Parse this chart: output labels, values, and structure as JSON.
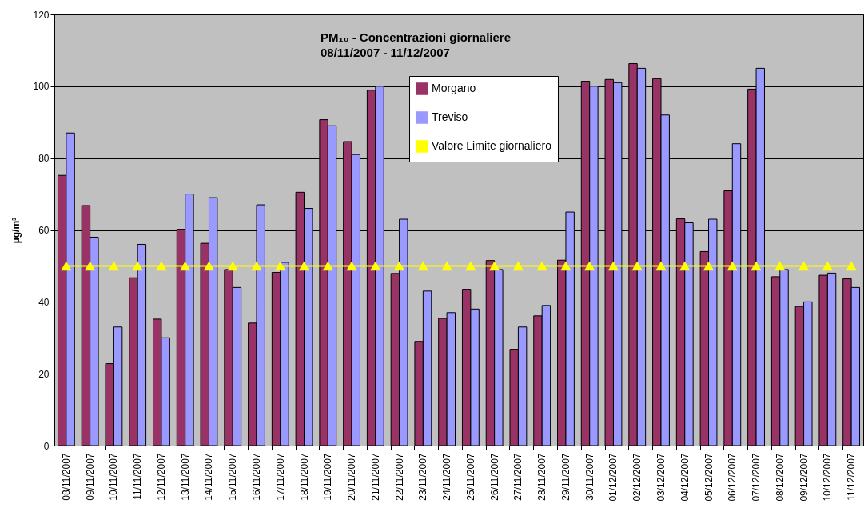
{
  "chart_data": {
    "type": "bar",
    "title": "PM₁₀ - Concentrazioni giornaliere",
    "subtitle": "08/11/2007 - 11/12/2007",
    "ylabel": "µg/m³",
    "categories": [
      "08/11/2007",
      "09/11/2007",
      "10/11/2007",
      "11/11/2007",
      "12/11/2007",
      "13/11/2007",
      "14/11/2007",
      "15/11/2007",
      "16/11/2007",
      "17/11/2007",
      "18/11/2007",
      "19/11/2007",
      "20/11/2007",
      "21/11/2007",
      "22/11/2007",
      "23/11/2007",
      "24/11/2007",
      "25/11/2007",
      "26/11/2007",
      "27/11/2007",
      "28/11/2007",
      "29/11/2007",
      "30/11/2007",
      "01/12/2007",
      "02/12/2007",
      "03/12/2007",
      "04/12/2007",
      "05/12/2007",
      "06/12/2007",
      "07/12/2007",
      "08/12/2007",
      "09/12/2007",
      "10/12/2007",
      "11/12/2007"
    ],
    "series": [
      {
        "name": "Morgano",
        "color": "#993366",
        "values": [
          75.2,
          66.8,
          22.8,
          46.7,
          35.2,
          60.2,
          56.3,
          49,
          34.1,
          48.2,
          70.5,
          90.7,
          84.6,
          98.9,
          47.9,
          29,
          35.4,
          43.5,
          51.5,
          26.8,
          36.1,
          51.6,
          101.4,
          101.9,
          106.3,
          102.1,
          63.1,
          54,
          70.9,
          99.2,
          47,
          38.7,
          47.4,
          46.4
        ]
      },
      {
        "name": "Treviso",
        "color": "#9999ff",
        "values": [
          87,
          58,
          33,
          56,
          30,
          70,
          69,
          44,
          67,
          51,
          66,
          89,
          81,
          100,
          63,
          43,
          37,
          38,
          49,
          33,
          39,
          65,
          100,
          101,
          105,
          92,
          62,
          63,
          84,
          105,
          49,
          40,
          48,
          44
        ]
      },
      {
        "name": "Valore Limite giornaliero",
        "type": "line",
        "color": "#ffff00",
        "marker": "triangle",
        "values": [
          50,
          50,
          50,
          50,
          50,
          50,
          50,
          50,
          50,
          50,
          50,
          50,
          50,
          50,
          50,
          50,
          50,
          50,
          50,
          50,
          50,
          50,
          50,
          50,
          50,
          50,
          50,
          50,
          50,
          50,
          50,
          50,
          50,
          50
        ]
      }
    ],
    "ylim": [
      0,
      120
    ],
    "yticks": [
      0,
      20,
      40,
      60,
      80,
      100,
      120
    ],
    "grid": "y",
    "legend": "top"
  }
}
